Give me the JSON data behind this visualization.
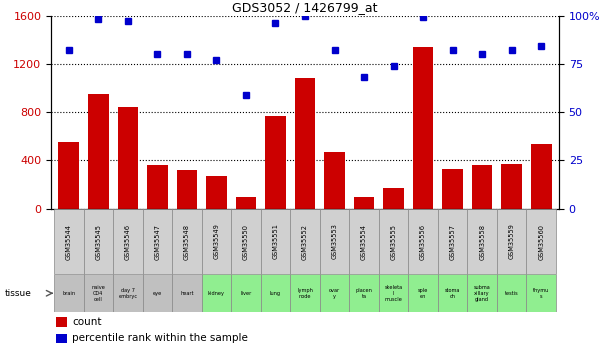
{
  "title": "GDS3052 / 1426799_at",
  "samples": [
    "GSM35544",
    "GSM35545",
    "GSM35546",
    "GSM35547",
    "GSM35548",
    "GSM35549",
    "GSM35550",
    "GSM35551",
    "GSM35552",
    "GSM35553",
    "GSM35554",
    "GSM35555",
    "GSM35556",
    "GSM35557",
    "GSM35558",
    "GSM35559",
    "GSM35560"
  ],
  "counts": [
    550,
    950,
    840,
    360,
    320,
    270,
    100,
    770,
    1080,
    470,
    100,
    175,
    1340,
    330,
    360,
    370,
    540
  ],
  "percentiles": [
    82,
    98,
    97,
    80,
    80,
    77,
    59,
    96,
    100,
    82,
    68,
    74,
    99,
    82,
    80,
    82,
    84
  ],
  "tissues": [
    "brain",
    "naive\nCD4\ncell",
    "day 7\nembryc",
    "eye",
    "heart",
    "kidney",
    "liver",
    "lung",
    "lymph\nnode",
    "ovar\ny",
    "placen\nta",
    "skeleta\nl\nmuscle",
    "sple\nen",
    "stoma\nch",
    "subma\nxillary\ngland",
    "testis",
    "thymu\ns"
  ],
  "tissue_colors": [
    "#c0c0c0",
    "#c0c0c0",
    "#c0c0c0",
    "#c0c0c0",
    "#c0c0c0",
    "#90ee90",
    "#90ee90",
    "#90ee90",
    "#90ee90",
    "#90ee90",
    "#90ee90",
    "#90ee90",
    "#90ee90",
    "#90ee90",
    "#90ee90",
    "#90ee90",
    "#90ee90"
  ],
  "bar_color": "#cc0000",
  "dot_color": "#0000cc",
  "ylim_left": [
    0,
    1600
  ],
  "ylim_right": [
    0,
    100
  ],
  "yticks_left": [
    0,
    400,
    800,
    1200,
    1600
  ],
  "yticks_right": [
    0,
    25,
    50,
    75,
    100
  ],
  "yticklabels_right": [
    "0",
    "25",
    "50",
    "75",
    "100%"
  ],
  "bg_color": "#ffffff",
  "grid_color": "#000000",
  "tick_label_color_left": "#cc0000",
  "tick_label_color_right": "#0000cc",
  "gsm_box_color": "#d0d0d0",
  "gsm_border_color": "#888888"
}
